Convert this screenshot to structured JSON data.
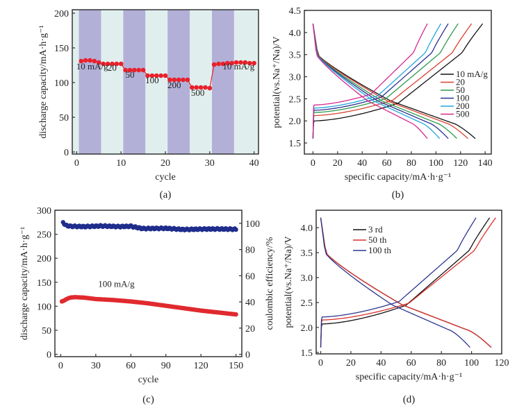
{
  "chart_data": [
    {
      "id": "a",
      "type": "scatter",
      "caption": "(a)",
      "xlabel": "cycle",
      "ylabel": "discharge capacity/mA·h·g⁻¹",
      "xlim": [
        -1,
        41
      ],
      "ylim": [
        -3,
        205
      ],
      "xticks": [
        0,
        10,
        20,
        30,
        40
      ],
      "yticks": [
        0,
        50,
        100,
        150,
        200
      ],
      "bands": [
        {
          "from": 0.5,
          "to": 5.5,
          "color": "#b3b0d8"
        },
        {
          "from": 5.5,
          "to": 10.5,
          "color": "#e0efee"
        },
        {
          "from": 10.5,
          "to": 15.5,
          "color": "#b3b0d8"
        },
        {
          "from": 15.5,
          "to": 20.5,
          "color": "#e0efee"
        },
        {
          "from": 20.5,
          "to": 25.5,
          "color": "#b3b0d8"
        },
        {
          "from": 25.5,
          "to": 30.5,
          "color": "#e0efee"
        },
        {
          "from": 30.5,
          "to": 35.5,
          "color": "#b3b0d8"
        },
        {
          "from": 35.5,
          "to": 40.5,
          "color": "#e0efee"
        }
      ],
      "background": "#e0efee",
      "series": [
        {
          "name": "discharge capacity",
          "color": "#e8212b",
          "x": [
            1,
            2,
            3,
            4,
            5,
            6,
            7,
            8,
            9,
            10,
            11,
            12,
            13,
            14,
            15,
            16,
            17,
            18,
            19,
            20,
            21,
            22,
            23,
            24,
            25,
            26,
            27,
            28,
            29,
            30,
            31,
            32,
            33,
            34,
            35,
            36,
            37,
            38,
            39,
            40
          ],
          "y": [
            131,
            132,
            132,
            131,
            129,
            127,
            127,
            127,
            127,
            127,
            118,
            118,
            118,
            118,
            118,
            110,
            110,
            110,
            110,
            110,
            104,
            104,
            104,
            104,
            104,
            93,
            93,
            93,
            93,
            92,
            126,
            127,
            127,
            128,
            128,
            129,
            129,
            129,
            128,
            128
          ]
        }
      ],
      "annotations": [
        {
          "text": "10 mA/g",
          "x": 3.5,
          "y": 119
        },
        {
          "text": "20",
          "x": 8,
          "y": 117
        },
        {
          "text": "50",
          "x": 12,
          "y": 107
        },
        {
          "text": "100",
          "x": 17,
          "y": 99
        },
        {
          "text": "200",
          "x": 22,
          "y": 92
        },
        {
          "text": "500",
          "x": 27.3,
          "y": 81
        },
        {
          "text": "10 mA/g",
          "x": 36.5,
          "y": 119
        }
      ]
    },
    {
      "id": "b",
      "type": "line",
      "caption": "(b)",
      "xlabel": "specific capacity/mA·h·g⁻¹",
      "ylabel": "potential(vs.Na⁺/Na)/V",
      "xlim": [
        -7,
        145
      ],
      "ylim": [
        1.25,
        4.5
      ],
      "xticks": [
        0,
        20,
        40,
        60,
        80,
        100,
        120,
        140
      ],
      "yticks": [
        1.5,
        2.0,
        2.5,
        3.0,
        3.5,
        4.0,
        4.5
      ],
      "legend": "right",
      "series": [
        {
          "name": "10 mA/g",
          "color": "#111111",
          "charge_end": 138,
          "discharge_end": 132,
          "plateau": 2.0
        },
        {
          "name": "20",
          "color": "#d9402f",
          "charge_end": 129,
          "discharge_end": 126,
          "plateau": 2.12
        },
        {
          "name": "50",
          "color": "#2e9a4a",
          "charge_end": 118,
          "discharge_end": 117,
          "plateau": 2.19
        },
        {
          "name": "100",
          "color": "#2a2f8f",
          "charge_end": 110,
          "discharge_end": 110,
          "plateau": 2.24
        },
        {
          "name": "200",
          "color": "#22a6dc",
          "charge_end": 104,
          "discharge_end": 103,
          "plateau": 2.29
        },
        {
          "name": "500",
          "color": "#d6288f",
          "charge_end": 93,
          "discharge_end": 93,
          "plateau": 2.36
        }
      ]
    },
    {
      "id": "c",
      "type": "scatter",
      "caption": "(c)",
      "xlabel": "cycle",
      "ylabel": "discharge capacity/mA·h·g⁻¹",
      "y2label": "coulombic efficiency/%",
      "xlim": [
        -5,
        155
      ],
      "ylim": [
        -5,
        300
      ],
      "y2lim": [
        -1.8,
        110
      ],
      "xticks": [
        0,
        30,
        60,
        90,
        120,
        150
      ],
      "yticks": [
        0,
        50,
        100,
        150,
        200,
        250,
        300
      ],
      "y2ticks": [
        0,
        20,
        40,
        60,
        80,
        100
      ],
      "annotations": [
        {
          "text": "100 mA/g",
          "x": 32,
          "y": 140
        }
      ],
      "series": [
        {
          "name": "discharge capacity",
          "axis": "left",
          "color": "#e02a2f",
          "points": [
            [
              1,
              110
            ],
            [
              3,
              112
            ],
            [
              5,
              115
            ],
            [
              8,
              118
            ],
            [
              12,
              119
            ],
            [
              20,
              118
            ],
            [
              30,
              115
            ],
            [
              45,
              113
            ],
            [
              60,
              110
            ],
            [
              75,
              106
            ],
            [
              90,
              101
            ],
            [
              105,
              96
            ],
            [
              120,
              91
            ],
            [
              135,
              87
            ],
            [
              150,
              83
            ]
          ]
        },
        {
          "name": "coulombic efficiency",
          "axis": "right",
          "color": "#1f2d8c",
          "points": [
            [
              2,
              101
            ],
            [
              4,
              98.5
            ],
            [
              8,
              97.8
            ],
            [
              20,
              97.5
            ],
            [
              35,
              98
            ],
            [
              50,
              97.5
            ],
            [
              60,
              97.8
            ],
            [
              70,
              96
            ],
            [
              90,
              96.2
            ],
            [
              105,
              95.3
            ],
            [
              120,
              95.6
            ],
            [
              135,
              95.7
            ],
            [
              150,
              95.5
            ]
          ]
        }
      ]
    },
    {
      "id": "d",
      "type": "line",
      "caption": "(d)",
      "xlabel": "specific capacity/mA·h·g⁻¹",
      "ylabel": "potential(vs.Na⁺/Na)/V",
      "xlim": [
        -3,
        120
      ],
      "ylim": [
        1.47,
        4.35
      ],
      "xticks": [
        0,
        20,
        40,
        60,
        80,
        100,
        120
      ],
      "yticks": [
        1.5,
        2.0,
        2.5,
        3.0,
        3.5,
        4.0
      ],
      "legend": "top-left",
      "series": [
        {
          "name": "3 rd",
          "color": "#111111",
          "charge_end": 112,
          "discharge_end": 113,
          "plateau": 2.07
        },
        {
          "name": "50 th",
          "color": "#d9302b",
          "charge_end": 116,
          "discharge_end": 113,
          "plateau": 2.15
        },
        {
          "name": "100 th",
          "color": "#2e3590",
          "charge_end": 103,
          "discharge_end": 99,
          "plateau": 2.21
        }
      ]
    }
  ]
}
